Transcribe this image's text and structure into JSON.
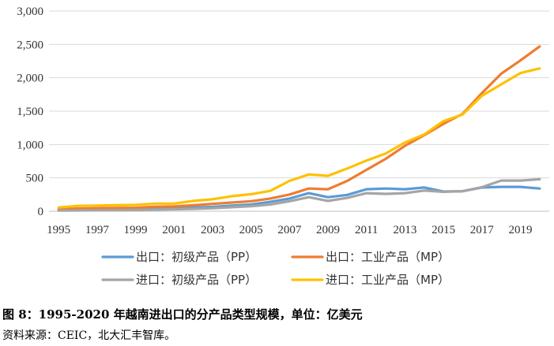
{
  "chart_data": {
    "type": "line",
    "x": [
      1995,
      1996,
      1997,
      1998,
      1999,
      2000,
      2001,
      2002,
      2003,
      2004,
      2005,
      2006,
      2007,
      2008,
      2009,
      2010,
      2011,
      2012,
      2013,
      2014,
      2015,
      2016,
      2017,
      2018,
      2019,
      2020
    ],
    "x_tick_labels": [
      "1995",
      "1997",
      "1999",
      "2001",
      "2003",
      "2005",
      "2007",
      "2009",
      "2011",
      "2013",
      "2015",
      "2017",
      "2019"
    ],
    "y_tick_labels": [
      "0",
      "500",
      "1,000",
      "1,500",
      "2,000",
      "2,500",
      "3,000"
    ],
    "ylim": [
      0,
      3000
    ],
    "grid": true,
    "legend_position": "bottom",
    "series": [
      {
        "name": "出口：初级产品（PP）",
        "color": "#5b9bd5",
        "values": [
          20,
          28,
          35,
          40,
          42,
          52,
          55,
          55,
          65,
          85,
          100,
          140,
          190,
          270,
          210,
          245,
          330,
          340,
          330,
          355,
          295,
          300,
          355,
          365,
          365,
          340
        ]
      },
      {
        "name": "出口：工业产品（MP）",
        "color": "#ed7d31",
        "values": [
          30,
          40,
          45,
          48,
          52,
          68,
          72,
          90,
          110,
          130,
          150,
          190,
          250,
          340,
          330,
          455,
          620,
          785,
          980,
          1140,
          1310,
          1460,
          1770,
          2060,
          2260,
          2470
        ]
      },
      {
        "name": "进口：初级产品（PP）",
        "color": "#a5a5a5",
        "values": [
          10,
          12,
          14,
          16,
          18,
          25,
          30,
          35,
          45,
          60,
          75,
          100,
          150,
          210,
          155,
          200,
          270,
          260,
          270,
          310,
          290,
          300,
          360,
          460,
          460,
          480
        ]
      },
      {
        "name": "进口：工业产品（MP）",
        "color": "#ffc000",
        "values": [
          55,
          80,
          85,
          90,
          95,
          115,
          115,
          155,
          180,
          225,
          255,
          305,
          455,
          550,
          530,
          640,
          760,
          865,
          1030,
          1150,
          1350,
          1450,
          1730,
          1900,
          2070,
          2140
        ]
      }
    ]
  },
  "caption": "图 8：1995-2020 年越南进出口的分产品类型规模，单位：亿美元",
  "source": "资料来源：CEIC，北大汇丰智库。"
}
